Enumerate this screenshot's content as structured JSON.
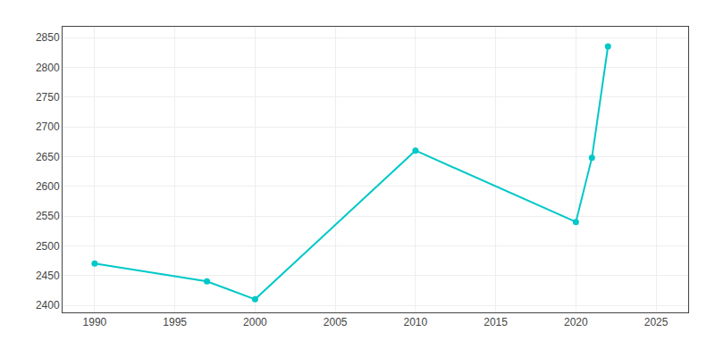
{
  "chart_data": {
    "type": "line",
    "x": [
      1990,
      1997,
      2000,
      2010,
      2020,
      2021,
      2022
    ],
    "values": [
      2470,
      2440,
      2410,
      2660,
      2540,
      2648,
      2835
    ],
    "color": "#00C8C8",
    "marker": "circle",
    "xlim": [
      1988,
      2027
    ],
    "ylim": [
      2388,
      2868
    ],
    "xticks": [
      1990,
      1995,
      2000,
      2005,
      2010,
      2015,
      2020,
      2025
    ],
    "yticks": [
      2400,
      2450,
      2500,
      2550,
      2600,
      2650,
      2700,
      2750,
      2800,
      2850
    ],
    "grid": true
  }
}
